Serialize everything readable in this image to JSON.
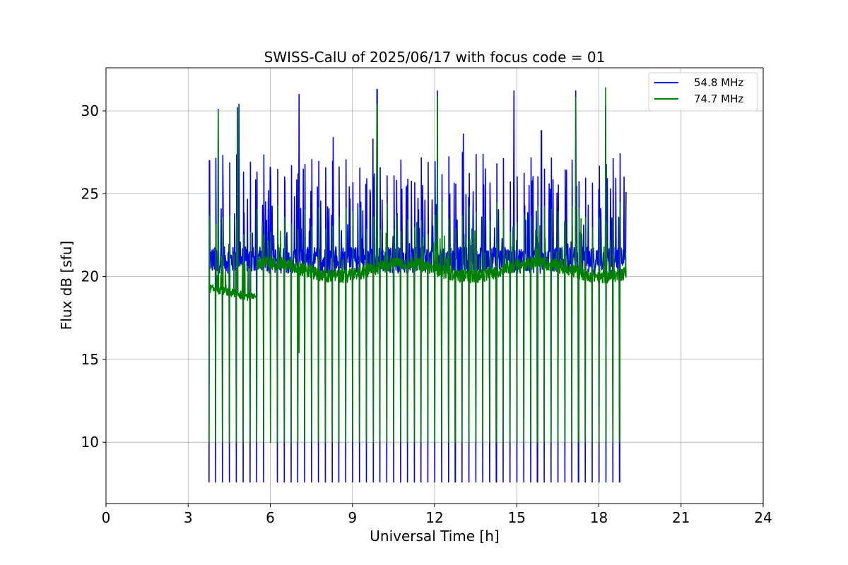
{
  "chart_data": {
    "type": "line",
    "title": "SWISS-CalU of 2025/06/17 with focus code = 01",
    "xlabel": "Universal Time [h]",
    "ylabel": "Flux dB [sfu]",
    "xlim": [
      0,
      24
    ],
    "ylim": [
      6.3,
      32.6
    ],
    "xticks": [
      0,
      3,
      6,
      9,
      12,
      15,
      18,
      21,
      24
    ],
    "yticks": [
      10,
      15,
      20,
      25,
      30
    ],
    "grid": true,
    "legend_position": "top-right",
    "data_range_x": [
      3.75,
      19.0
    ],
    "series": [
      {
        "name": "54.8 MHz",
        "color": "#0000ff",
        "baseline": 21.0,
        "calibration_low": 7.6,
        "spike_peaks": [
          {
            "x": 3.78,
            "y": 27.0
          },
          {
            "x": 4.1,
            "y": 30.1
          },
          {
            "x": 4.85,
            "y": 30.4
          },
          {
            "x": 6.0,
            "y": 26.6
          },
          {
            "x": 7.05,
            "y": 31.0
          },
          {
            "x": 8.3,
            "y": 28.4
          },
          {
            "x": 9.75,
            "y": 28.3
          },
          {
            "x": 9.9,
            "y": 31.3
          },
          {
            "x": 12.1,
            "y": 31.2
          },
          {
            "x": 13.05,
            "y": 28.6
          },
          {
            "x": 14.9,
            "y": 31.2
          },
          {
            "x": 15.9,
            "y": 28.8
          },
          {
            "x": 17.15,
            "y": 31.2
          },
          {
            "x": 18.25,
            "y": 30.3
          }
        ]
      },
      {
        "name": "74.7 MHz",
        "color": "#008000",
        "baseline_early": 19.0,
        "baseline_late": 20.4,
        "calibration_low": 10.0,
        "spike_peaks": [
          {
            "x": 4.1,
            "y": 30.0
          },
          {
            "x": 4.8,
            "y": 30.2
          },
          {
            "x": 7.05,
            "y": 29.5
          },
          {
            "x": 9.9,
            "y": 30.4
          },
          {
            "x": 12.1,
            "y": 30.8
          },
          {
            "x": 17.15,
            "y": 30.8
          },
          {
            "x": 18.25,
            "y": 31.4
          }
        ],
        "dip": {
          "x": 7.05,
          "y": 15.4
        }
      }
    ]
  }
}
